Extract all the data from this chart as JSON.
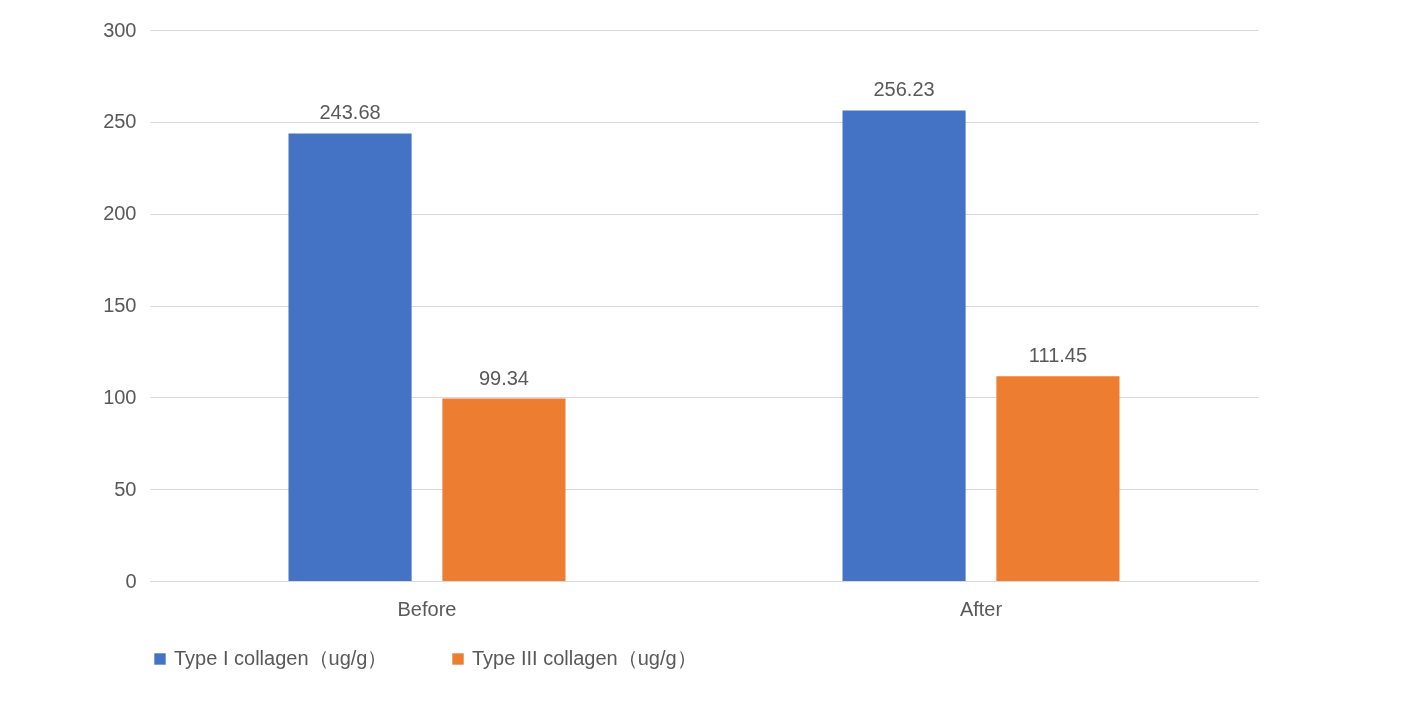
{
  "chart_data": {
    "type": "bar",
    "categories": [
      "Before",
      "After"
    ],
    "series": [
      {
        "name": "Type I collagen（ug/g）",
        "color": "#4472c4",
        "values": [
          243.68,
          256.23
        ]
      },
      {
        "name": "Type III collagen（ug/g）",
        "color": "#ed7d31",
        "values": [
          99.34,
          111.45
        ]
      }
    ],
    "ylim": [
      0,
      300
    ],
    "yticks": [
      0,
      50,
      100,
      150,
      200,
      250,
      300
    ],
    "grid": "y",
    "legend": "bottom",
    "data_labels": true
  }
}
